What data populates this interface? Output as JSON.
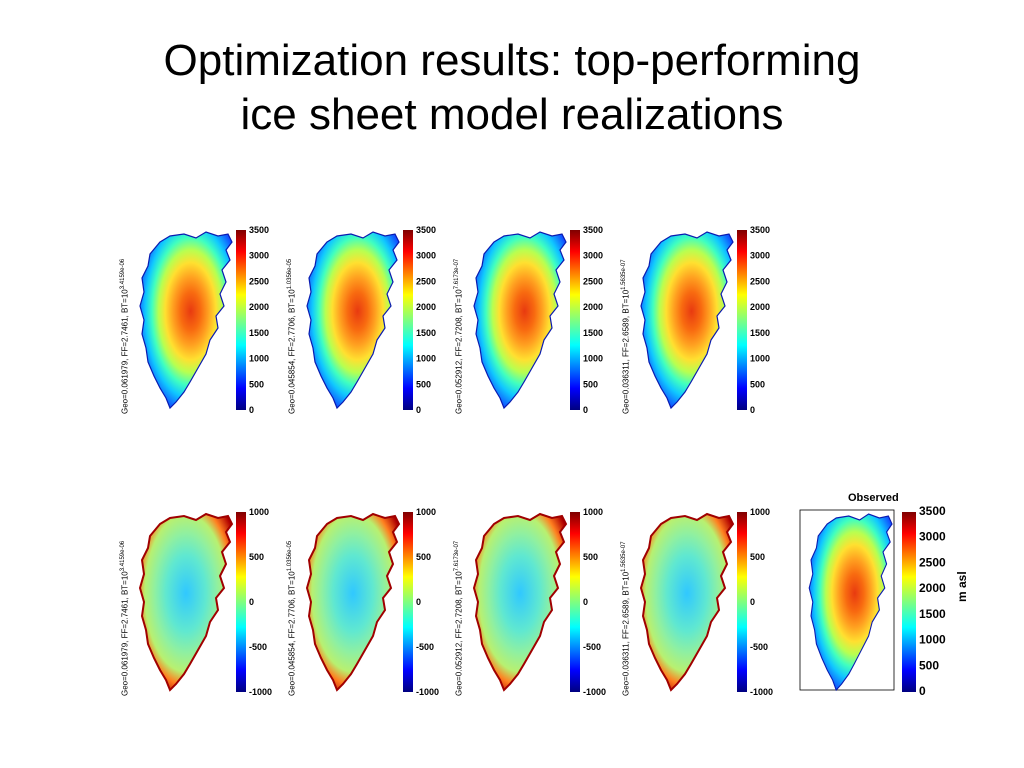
{
  "slide": {
    "title_line1": "Optimization results: top-performing",
    "title_line2": "ice sheet model realizations"
  },
  "realizations": [
    {
      "geo": "Geo=0.061979, FF=2.7461, BT=10",
      "exp": "3.4159e-06"
    },
    {
      "geo": "Geo=0.045854, FF=2.7706, BT=10",
      "exp": "1.0356e-05"
    },
    {
      "geo": "Geo=0.052912, FF=2.7208, BT=10",
      "exp": "7.6173e-07"
    },
    {
      "geo": "Geo=0.036311, FF=2.6589, BT=10",
      "exp": "1.5635e-07"
    }
  ],
  "surface_colorbar": {
    "ticks": [
      "3500",
      "3000",
      "2500",
      "2000",
      "1500",
      "1000",
      "500",
      "0"
    ]
  },
  "difference_colorbar": {
    "ticks": [
      "1000",
      "500",
      "0",
      "-500",
      "-1000"
    ]
  },
  "observed": {
    "title": "Observed",
    "unit_label": "m asl",
    "ticks": [
      "3500",
      "3000",
      "2500",
      "2000",
      "1500",
      "1000",
      "500",
      "0"
    ]
  },
  "colors": {
    "jet_low": "#00007f",
    "jet_mid": "#7fff7f",
    "jet_high": "#7f0000"
  }
}
